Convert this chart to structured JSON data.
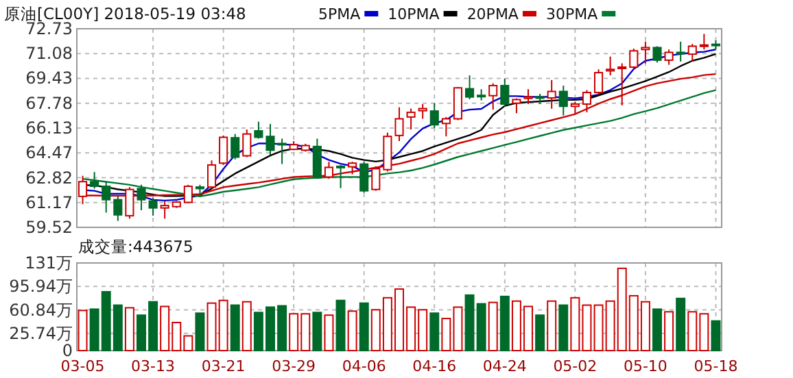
{
  "chart_data": [
    {
      "type": "candlestick",
      "title": "原油[CL00Y] 2018-05-19 03:48",
      "legend": "top",
      "grid": true,
      "tick_labels": "y",
      "categories": [
        null,
        null,
        null,
        null,
        null,
        null,
        null,
        null,
        null,
        null,
        null,
        null,
        null,
        null,
        null,
        null,
        null,
        null,
        null,
        null,
        null,
        null,
        null,
        null,
        null,
        null,
        null,
        null,
        null,
        null,
        null,
        null,
        null,
        null,
        null,
        null,
        null,
        null,
        null,
        null,
        null,
        null,
        null,
        null,
        null,
        null,
        null,
        null,
        null,
        null,
        null,
        null,
        null,
        null,
        null
      ],
      "ylim": [
        59.52,
        72.73
      ],
      "yticks": [
        59.52,
        61.17,
        62.82,
        64.47,
        66.13,
        67.78,
        69.43,
        71.08,
        72.73
      ],
      "ohlc": [
        [
          61.58,
          62.95,
          61.06,
          62.56
        ],
        [
          62.56,
          63.2,
          62.1,
          62.25
        ],
        [
          62.25,
          62.56,
          60.5,
          61.36
        ],
        [
          61.36,
          61.58,
          59.95,
          60.35
        ],
        [
          60.29,
          62.2,
          60.1,
          62.04
        ],
        [
          62.1,
          62.35,
          60.66,
          61.36
        ],
        [
          61.27,
          61.5,
          60.3,
          60.81
        ],
        [
          60.81,
          61.27,
          60.1,
          60.97
        ],
        [
          60.9,
          61.27,
          60.81,
          61.2
        ],
        [
          61.18,
          62.35,
          61.12,
          62.25
        ],
        [
          62.2,
          62.35,
          61.6,
          62.1
        ],
        [
          62.2,
          63.97,
          62.1,
          63.67
        ],
        [
          63.79,
          65.63,
          63.67,
          65.51
        ],
        [
          65.48,
          65.73,
          64.04,
          64.19
        ],
        [
          64.28,
          66.03,
          64.19,
          65.73
        ],
        [
          65.94,
          66.55,
          65.42,
          65.51
        ],
        [
          65.57,
          66.4,
          64.34,
          64.65
        ],
        [
          65.1,
          65.42,
          63.73,
          65.05
        ],
        [
          64.71,
          65.26,
          64.65,
          65.02
        ],
        [
          64.65,
          65.08,
          64.56,
          64.96
        ],
        [
          64.9,
          65.42,
          62.75,
          62.81
        ],
        [
          62.87,
          63.88,
          62.75,
          63.51
        ],
        [
          63.58,
          63.67,
          62.13,
          63.52
        ],
        [
          63.55,
          63.88,
          63.05,
          63.79
        ],
        [
          63.73,
          63.88,
          61.82,
          61.95
        ],
        [
          62.04,
          63.58,
          61.95,
          63.42
        ],
        [
          63.36,
          65.82,
          63.24,
          65.57
        ],
        [
          65.63,
          67.5,
          65.26,
          66.74
        ],
        [
          66.86,
          67.42,
          66.03,
          67.17
        ],
        [
          67.28,
          67.72,
          66.74,
          67.42
        ],
        [
          67.26,
          67.78,
          66.12,
          66.34
        ],
        [
          66.43,
          66.86,
          65.57,
          66.74
        ],
        [
          66.74,
          68.86,
          66.65,
          68.8
        ],
        [
          68.74,
          69.63,
          68.04,
          68.19
        ],
        [
          68.3,
          68.71,
          67.97,
          68.25
        ],
        [
          68.28,
          69.1,
          67.35,
          68.95
        ],
        [
          68.95,
          69.41,
          67.57,
          67.72
        ],
        [
          67.78,
          68.1,
          67.11,
          68.02
        ],
        [
          68.1,
          68.71,
          67.72,
          68.2
        ],
        [
          68.2,
          68.4,
          67.72,
          68.15
        ],
        [
          68.13,
          69.32,
          67.41,
          68.56
        ],
        [
          68.56,
          68.95,
          66.96,
          67.57
        ],
        [
          67.57,
          67.88,
          67.11,
          67.72
        ],
        [
          67.72,
          68.65,
          67.17,
          68.49
        ],
        [
          68.49,
          70.03,
          68.34,
          69.81
        ],
        [
          69.93,
          70.88,
          69.63,
          70.03
        ],
        [
          70.12,
          70.43,
          67.63,
          70.18
        ],
        [
          70.18,
          71.41,
          70.03,
          71.26
        ],
        [
          71.35,
          71.87,
          70.43,
          71.48
        ],
        [
          71.48,
          71.57,
          70.49,
          70.64
        ],
        [
          70.64,
          71.35,
          70.33,
          71.16
        ],
        [
          71.16,
          71.87,
          70.55,
          71.1
        ],
        [
          71.04,
          71.72,
          70.55,
          71.57
        ],
        [
          71.6,
          72.39,
          71.35,
          71.65
        ],
        [
          71.7,
          71.96,
          71.35,
          71.66
        ]
      ],
      "colors": [
        "#cc0000",
        "#006a2a",
        "#006a2a",
        "#006a2a",
        "#cc0000",
        "#006a2a",
        "#006a2a",
        "#cc0000",
        "#cc0000",
        "#cc0000",
        "#006a2a",
        "#cc0000",
        "#cc0000",
        "#006a2a",
        "#cc0000",
        "#006a2a",
        "#006a2a",
        "#006a2a",
        "#cc0000",
        "#cc0000",
        "#006a2a",
        "#cc0000",
        "#006a2a",
        "#cc0000",
        "#006a2a",
        "#cc0000",
        "#cc0000",
        "#cc0000",
        "#cc0000",
        "#cc0000",
        "#006a2a",
        "#cc0000",
        "#cc0000",
        "#006a2a",
        "#006a2a",
        "#cc0000",
        "#006a2a",
        "#cc0000",
        "#cc0000",
        "#006a2a",
        "#cc0000",
        "#006a2a",
        "#cc0000",
        "#cc0000",
        "#cc0000",
        "#cc0000",
        "#cc0000",
        "#cc0000",
        "#cc0000",
        "#006a2a",
        "#cc0000",
        "#006a2a",
        "#cc0000",
        "#cc0000",
        "#006a2a"
      ],
      "series": [
        {
          "name": "5PMA",
          "type": "line",
          "color": "#0000cc",
          "values": [
            62.0,
            61.95,
            61.75,
            61.75,
            61.75,
            61.6,
            61.35,
            61.3,
            61.35,
            61.5,
            61.65,
            62.35,
            63.4,
            64.35,
            64.8,
            65.1,
            65.1,
            65.05,
            65.0,
            64.9,
            64.35,
            64.0,
            63.75,
            63.6,
            63.2,
            63.35,
            63.9,
            64.5,
            65.4,
            66.1,
            66.45,
            66.65,
            67.2,
            67.35,
            67.4,
            67.9,
            68.25,
            68.25,
            68.2,
            68.2,
            68.2,
            68.15,
            68.1,
            68.2,
            68.35,
            68.65,
            69.1,
            70.05,
            70.6,
            70.75,
            70.95,
            71.05,
            71.15,
            71.2,
            71.35
          ]
        },
        {
          "name": "10PMA",
          "type": "line",
          "color": "#000000",
          "values": [
            62.35,
            62.3,
            62.2,
            62.05,
            61.95,
            61.85,
            61.7,
            61.6,
            61.6,
            61.62,
            61.65,
            62.1,
            62.6,
            63.1,
            63.5,
            63.9,
            64.3,
            64.6,
            64.75,
            64.75,
            64.7,
            64.6,
            64.4,
            64.15,
            64.0,
            63.9,
            64.0,
            64.2,
            64.4,
            64.6,
            64.9,
            65.15,
            65.4,
            65.65,
            66.0,
            67.0,
            67.6,
            67.8,
            67.85,
            67.9,
            67.95,
            68.0,
            68.0,
            68.05,
            68.3,
            68.55,
            68.75,
            69.0,
            69.25,
            69.55,
            69.85,
            70.25,
            70.6,
            70.8,
            71.05
          ]
        },
        {
          "name": "20PMA",
          "type": "line",
          "color": "#cc0000",
          "values": [
            61.64,
            61.64,
            61.63,
            61.62,
            61.62,
            61.63,
            61.64,
            61.66,
            61.68,
            61.7,
            61.73,
            61.95,
            62.19,
            62.3,
            62.4,
            62.5,
            62.62,
            62.75,
            62.87,
            62.9,
            62.93,
            62.96,
            63.1,
            63.22,
            63.36,
            63.5,
            63.62,
            63.75,
            63.95,
            64.15,
            64.4,
            64.75,
            65.1,
            65.3,
            65.5,
            65.7,
            65.85,
            66.05,
            66.25,
            66.45,
            66.65,
            66.85,
            67.05,
            67.4,
            67.75,
            68.05,
            68.3,
            68.6,
            68.9,
            69.1,
            69.25,
            69.4,
            69.5,
            69.65,
            69.72
          ]
        },
        {
          "name": "30PMA",
          "type": "line",
          "color": "#007a30",
          "values": [
            62.75,
            62.65,
            62.55,
            62.45,
            62.35,
            62.2,
            62.07,
            61.95,
            61.82,
            61.7,
            61.58,
            61.72,
            61.89,
            61.98,
            62.08,
            62.19,
            62.37,
            62.55,
            62.72,
            62.77,
            62.82,
            62.87,
            62.87,
            62.87,
            62.87,
            62.98,
            63.1,
            63.18,
            63.3,
            63.48,
            63.7,
            63.95,
            64.2,
            64.4,
            64.6,
            64.8,
            65.0,
            65.2,
            65.4,
            65.6,
            65.8,
            66.0,
            66.15,
            66.3,
            66.45,
            66.6,
            66.8,
            67.05,
            67.25,
            67.45,
            67.7,
            67.95,
            68.2,
            68.45,
            68.65
          ]
        }
      ]
    },
    {
      "type": "bar",
      "title": "成交量:443675",
      "grid": true,
      "categories": [
        "03-05",
        null,
        null,
        null,
        null,
        null,
        "03-13",
        null,
        null,
        null,
        null,
        null,
        "03-21",
        null,
        null,
        null,
        null,
        null,
        "03-29",
        null,
        null,
        null,
        null,
        null,
        "04-06",
        null,
        null,
        null,
        null,
        null,
        "04-16",
        null,
        null,
        null,
        null,
        null,
        "04-24",
        null,
        null,
        null,
        null,
        null,
        "05-02",
        null,
        null,
        null,
        null,
        null,
        "05-10",
        null,
        null,
        null,
        null,
        null,
        "05-18"
      ],
      "ylim": [
        0,
        131
      ],
      "yticks": [
        0,
        {
          "value": 25.74,
          "label": "25.74万"
        },
        {
          "value": 60.84,
          "label": "60.84万"
        },
        {
          "value": 95.94,
          "label": "95.94万"
        },
        {
          "value": 131,
          "label": "131万"
        }
      ],
      "values": [
        60,
        62,
        88,
        68,
        64,
        53,
        73,
        66,
        42,
        22,
        56,
        71,
        75,
        68,
        73,
        57,
        65,
        67,
        55,
        55,
        57,
        53,
        75,
        59,
        71,
        61,
        79,
        92,
        65,
        61,
        56,
        48,
        65,
        83,
        70,
        72,
        81,
        74,
        66,
        53,
        74,
        68,
        79,
        68,
        68,
        74,
        123,
        82,
        73,
        62,
        58,
        78,
        58,
        55,
        44.37
      ],
      "colors": [
        "#cc0000",
        "#006a2a",
        "#006a2a",
        "#006a2a",
        "#cc0000",
        "#006a2a",
        "#006a2a",
        "#cc0000",
        "#cc0000",
        "#cc0000",
        "#006a2a",
        "#cc0000",
        "#cc0000",
        "#006a2a",
        "#cc0000",
        "#006a2a",
        "#006a2a",
        "#006a2a",
        "#cc0000",
        "#cc0000",
        "#006a2a",
        "#cc0000",
        "#006a2a",
        "#cc0000",
        "#006a2a",
        "#cc0000",
        "#cc0000",
        "#cc0000",
        "#cc0000",
        "#cc0000",
        "#006a2a",
        "#cc0000",
        "#cc0000",
        "#006a2a",
        "#006a2a",
        "#cc0000",
        "#006a2a",
        "#cc0000",
        "#cc0000",
        "#006a2a",
        "#cc0000",
        "#006a2a",
        "#cc0000",
        "#cc0000",
        "#cc0000",
        "#cc0000",
        "#cc0000",
        "#cc0000",
        "#cc0000",
        "#006a2a",
        "#cc0000",
        "#006a2a",
        "#cc0000",
        "#cc0000",
        "#006a2a"
      ]
    }
  ]
}
